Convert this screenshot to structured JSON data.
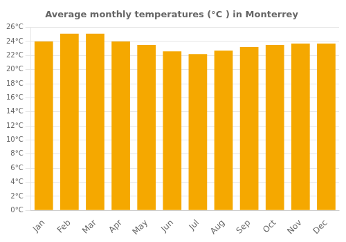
{
  "chart_data": {
    "type": "bar",
    "title": "Average monthly temperatures (°C ) in Monterrey",
    "categories": [
      "Jan",
      "Feb",
      "Mar",
      "Apr",
      "May",
      "Jun",
      "Jul",
      "Aug",
      "Sep",
      "Oct",
      "Nov",
      "Dec"
    ],
    "values": [
      24.0,
      25.1,
      25.1,
      24.0,
      23.5,
      22.6,
      22.2,
      22.7,
      23.2,
      23.5,
      23.7,
      23.7
    ],
    "color": "#F5A800",
    "ylim": [
      0,
      26
    ],
    "yticks": [
      {
        "value": 0,
        "label": "0°C"
      },
      {
        "value": 2,
        "label": "2°C"
      },
      {
        "value": 4,
        "label": "4°C"
      },
      {
        "value": 6,
        "label": "6°C"
      },
      {
        "value": 8,
        "label": "8°C"
      },
      {
        "value": 10,
        "label": "10°C"
      },
      {
        "value": 12,
        "label": "12°C"
      },
      {
        "value": 14,
        "label": "14°C"
      },
      {
        "value": 16,
        "label": "16°C"
      },
      {
        "value": 18,
        "label": "18°C"
      },
      {
        "value": 20,
        "label": "20°C"
      },
      {
        "value": 22,
        "label": "22°C"
      },
      {
        "value": 24,
        "label": "24°C"
      },
      {
        "value": 26,
        "label": "26°C"
      }
    ],
    "grid": true
  }
}
